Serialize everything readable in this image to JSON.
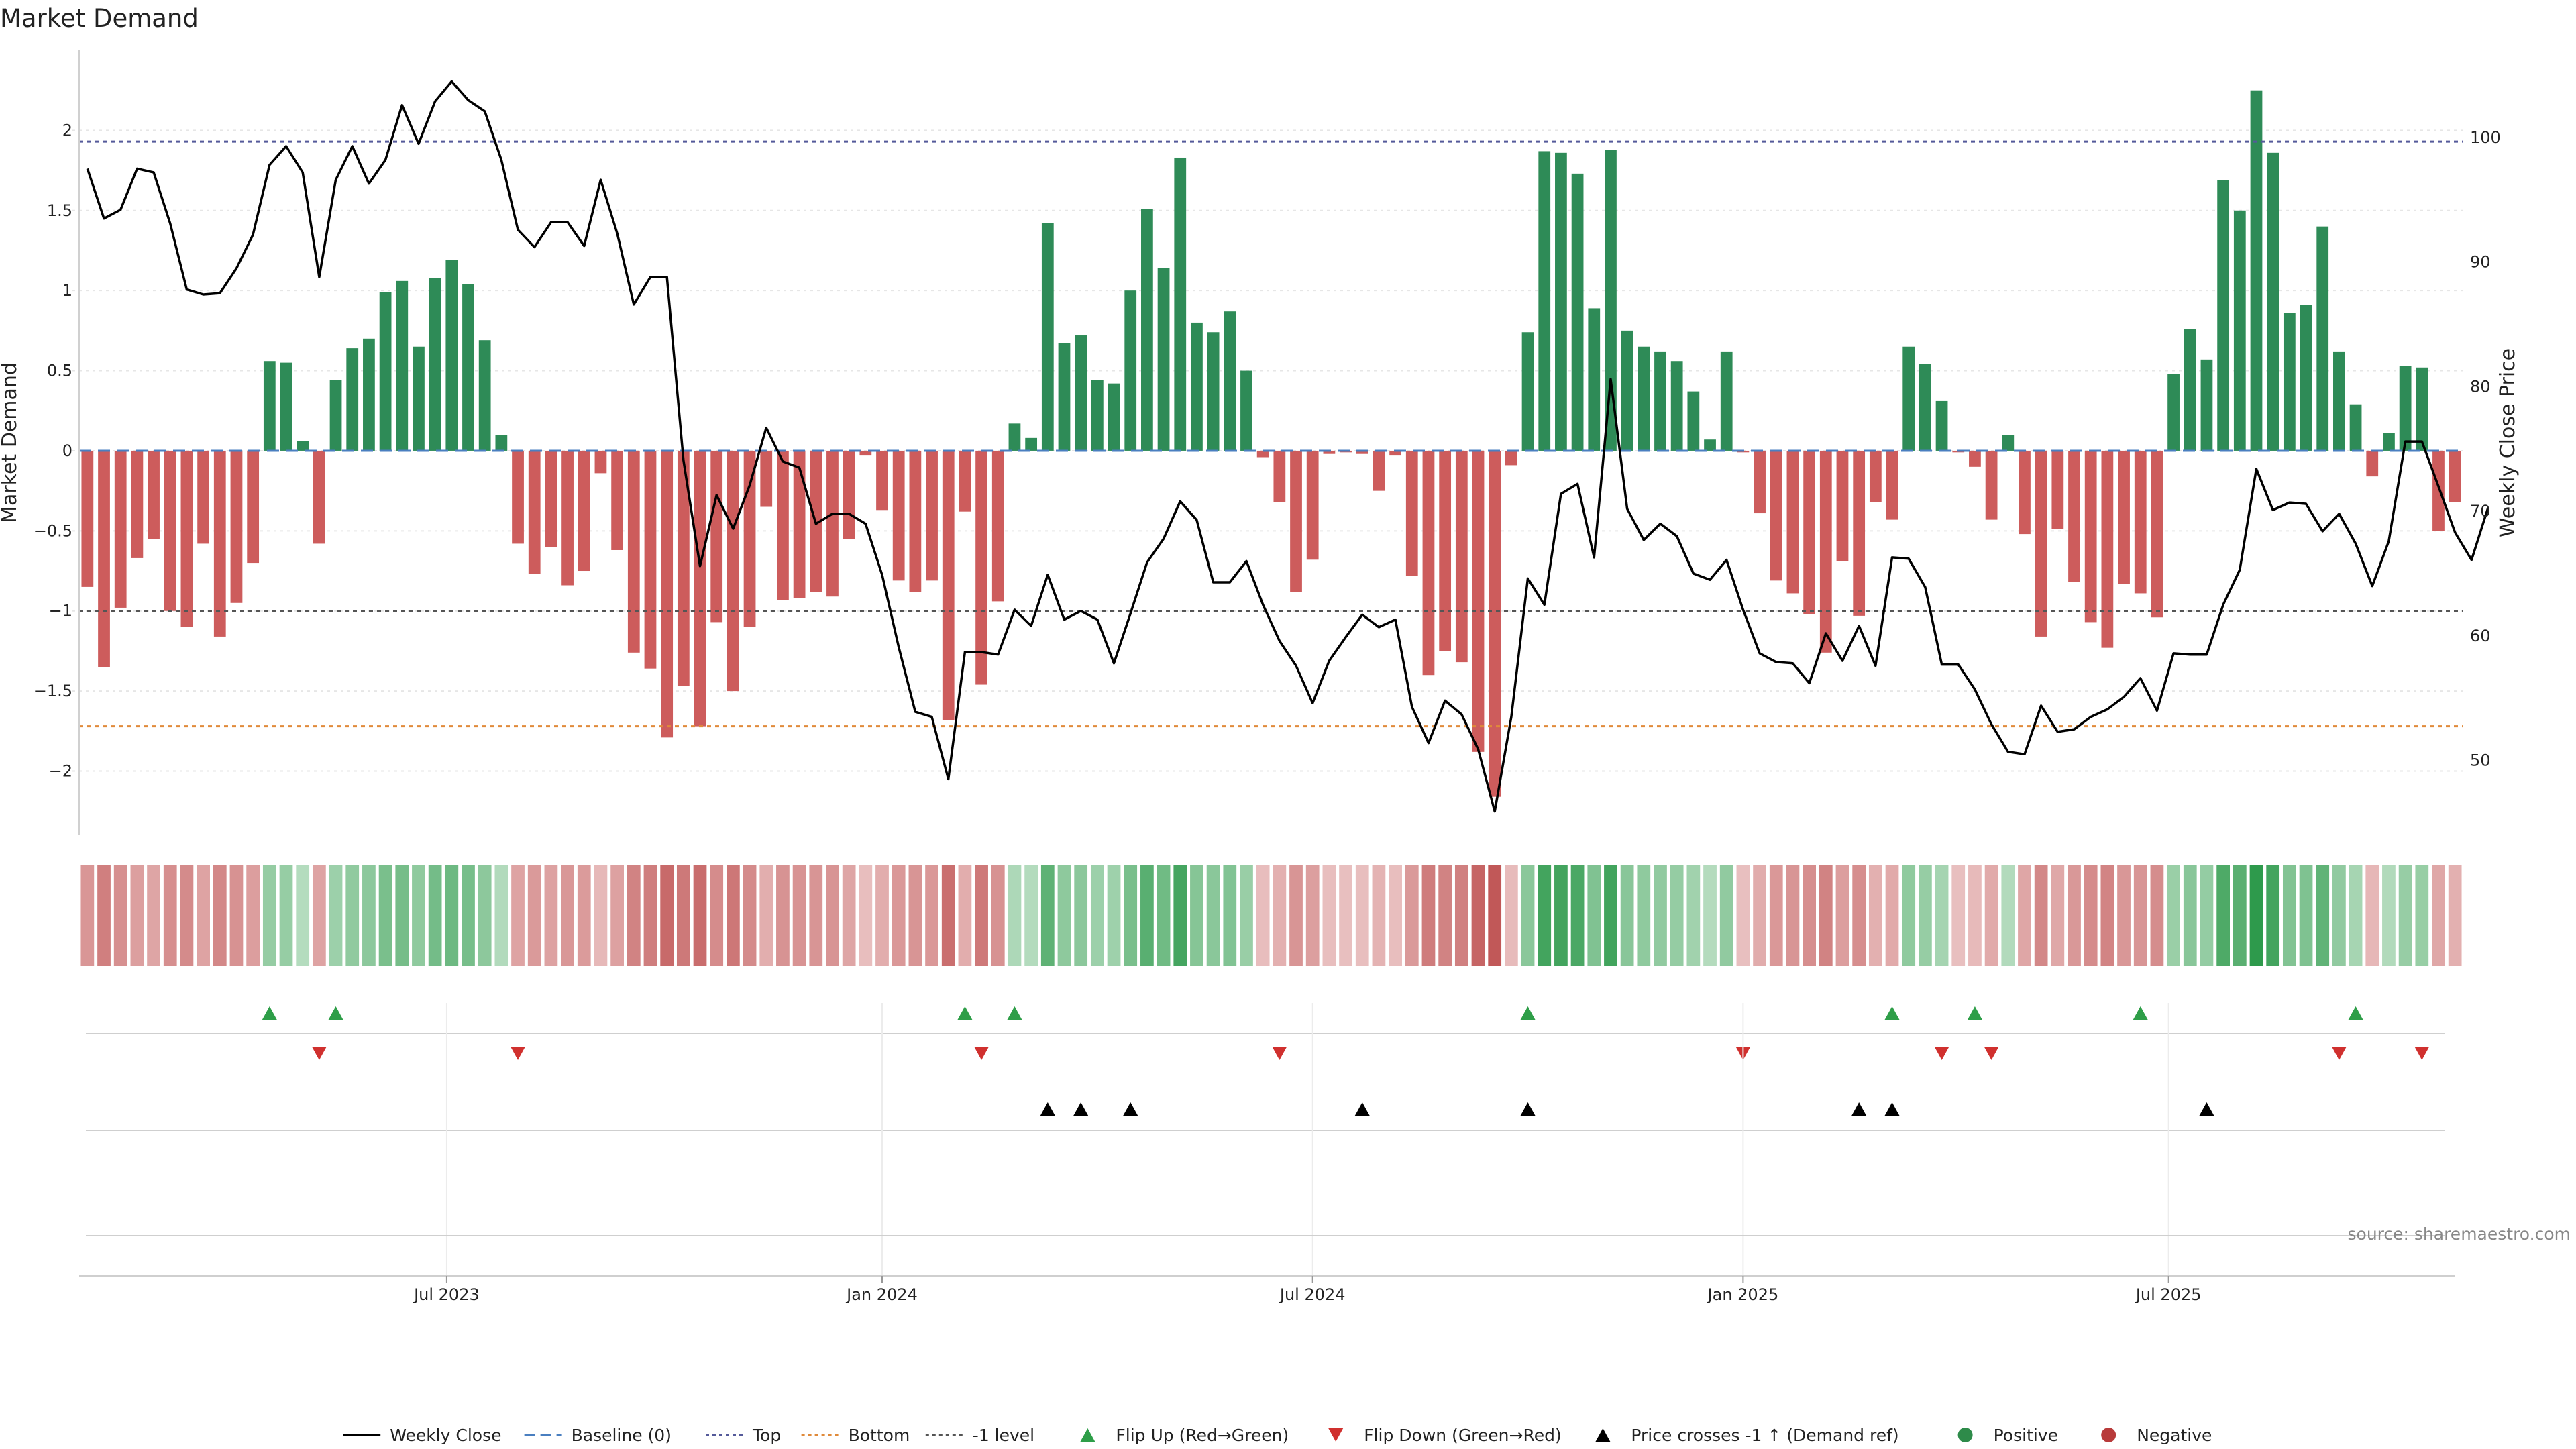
{
  "chart_data": {
    "type": "bar",
    "title": "Market Demand",
    "ylabel_left": "Market Demand",
    "ylabel_right": "Weekly Close Price",
    "ylim_left": [
      -2.4,
      2.5
    ],
    "ylim_right": [
      44,
      107
    ],
    "yticks_left": [
      -2,
      -1.5,
      -1,
      -0.5,
      0,
      0.5,
      1,
      1.5,
      2
    ],
    "yticks_right": [
      50,
      60,
      70,
      80,
      90,
      100
    ],
    "x_ticks": [
      {
        "week": 21.7,
        "label": "Jul 2023"
      },
      {
        "week": 48,
        "label": "Jan 2024"
      },
      {
        "week": 74,
        "label": "Jul 2024"
      },
      {
        "week": 100,
        "label": "Jan 2025"
      },
      {
        "week": 125.7,
        "label": "Jul 2025"
      }
    ],
    "reference_lines": {
      "baseline": 0,
      "top": 1.93,
      "bottom": -1.72,
      "minus_one": -1
    },
    "series": [
      {
        "name": "Market Demand",
        "values": [
          -0.85,
          -1.35,
          -0.98,
          -0.67,
          -0.55,
          -1.0,
          -1.1,
          -0.58,
          -1.16,
          -0.95,
          -0.7,
          0.56,
          0.55,
          0.06,
          -0.58,
          0.44,
          0.64,
          0.7,
          0.99,
          1.06,
          0.65,
          1.08,
          1.19,
          1.04,
          0.69,
          0.1,
          -0.58,
          -0.77,
          -0.6,
          -0.84,
          -0.75,
          -0.14,
          -0.62,
          -1.26,
          -1.36,
          -1.79,
          -1.47,
          -1.72,
          -1.07,
          -1.5,
          -1.1,
          -0.35,
          -0.93,
          -0.92,
          -0.88,
          -0.91,
          -0.55,
          -0.03,
          -0.37,
          -0.81,
          -0.88,
          -0.81,
          -1.68,
          -0.38,
          -1.46,
          -0.94,
          0.17,
          0.08,
          1.42,
          0.67,
          0.72,
          0.44,
          0.42,
          1.0,
          1.51,
          1.14,
          1.83,
          0.8,
          0.74,
          0.87,
          0.5,
          -0.04,
          -0.32,
          -0.88,
          -0.68,
          -0.02,
          -0.01,
          -0.02,
          -0.25,
          -0.03,
          -0.78,
          -1.4,
          -1.25,
          -1.32,
          -1.88,
          -2.16,
          -0.09,
          0.74,
          1.87,
          1.86,
          1.73,
          0.89,
          1.88,
          0.75,
          0.65,
          0.62,
          0.56,
          0.37,
          0.07,
          0.62,
          -0.01,
          -0.39,
          -0.81,
          -0.89,
          -1.02,
          -1.26,
          -0.69,
          -1.03,
          -0.32,
          -0.43,
          0.65,
          0.54,
          0.31,
          -0.01,
          -0.1,
          -0.43,
          0.1,
          -0.52,
          -1.16,
          -0.49,
          -0.82,
          -1.07,
          -1.23,
          -0.83,
          -0.89,
          -1.04,
          0.48,
          0.76,
          0.57,
          1.69,
          1.5,
          2.25,
          1.86,
          0.86,
          0.91,
          1.4,
          0.62,
          0.29,
          -0.16,
          0.11,
          0.53,
          0.52,
          -0.5,
          -0.32
        ]
      },
      {
        "name": "Weekly Close",
        "values": [
          97.5,
          93.5,
          94.2,
          97.5,
          97.2,
          93.1,
          87.8,
          87.4,
          87.5,
          89.5,
          92.2,
          97.8,
          99.3,
          97.2,
          88.8,
          96.6,
          99.3,
          96.3,
          98.2,
          102.6,
          99.5,
          102.9,
          104.5,
          103.0,
          102.1,
          98.2,
          92.6,
          91.2,
          93.2,
          93.2,
          91.3,
          96.6,
          92.3,
          86.6,
          88.8,
          88.8,
          74.1,
          65.6,
          71.3,
          68.6,
          72.1,
          76.7,
          74.0,
          73.5,
          69.0,
          69.8,
          69.8,
          69.0,
          64.9,
          59.1,
          53.9,
          53.5,
          48.5,
          58.7,
          58.7,
          58.5,
          62.1,
          60.8,
          64.9,
          61.3,
          62.0,
          61.3,
          57.8,
          61.8,
          65.9,
          67.8,
          70.8,
          69.3,
          64.3,
          64.3,
          66.0,
          62.5,
          59.6,
          57.6,
          54.6,
          58.0,
          59.9,
          61.7,
          60.7,
          61.3,
          54.3,
          51.4,
          54.8,
          53.7,
          50.9,
          45.9,
          53.5,
          64.6,
          62.5,
          71.4,
          72.2,
          66.3,
          80.6,
          70.2,
          67.7,
          69.0,
          68.0,
          65.0,
          64.5,
          66.1,
          62.1,
          58.6,
          57.9,
          57.8,
          56.2,
          60.2,
          58.0,
          60.8,
          57.6,
          66.3,
          66.2,
          63.9,
          57.7,
          57.7,
          55.7,
          52.9,
          50.7,
          50.5,
          54.4,
          52.3,
          52.5,
          53.5,
          54.1,
          55.1,
          56.6,
          54.0,
          58.6,
          58.5,
          58.5,
          62.5,
          65.3,
          73.4,
          70.1,
          70.7,
          70.6,
          68.4,
          69.8,
          67.4,
          64.0,
          67.6,
          75.6,
          75.6,
          72.0,
          68.3,
          66.1,
          70.3
        ]
      }
    ],
    "bands": {
      "flip_up_weeks": [
        11,
        15,
        53,
        56,
        87,
        109,
        114,
        124,
        137
      ],
      "flip_down_weeks": [
        14,
        26,
        54,
        72,
        100,
        112,
        115,
        136,
        141
      ],
      "price_cross_weeks": [
        58,
        60,
        63,
        77,
        87,
        107,
        109,
        128
      ]
    },
    "source_text": "source: sharemaestro.com",
    "legend": [
      {
        "label": "Weekly Close",
        "kind": "line-solid",
        "color": "#000000"
      },
      {
        "label": "Baseline (0)",
        "kind": "line-dash",
        "color": "#4a7fc0"
      },
      {
        "label": "Top",
        "kind": "line-dot",
        "color": "#555a9a"
      },
      {
        "label": "Bottom",
        "kind": "line-dot",
        "color": "#e08a3a"
      },
      {
        "label": "-1 level",
        "kind": "line-dot",
        "color": "#555555"
      },
      {
        "label": "Flip Up (Red→Green)",
        "kind": "tri-up",
        "color": "#2e9e48"
      },
      {
        "label": "Flip Down (Green→Red)",
        "kind": "tri-down",
        "color": "#d0302e"
      },
      {
        "label": "Price crosses -1 ↑ (Demand ref)",
        "kind": "tri-up",
        "color": "#000000"
      },
      {
        "label": "Positive",
        "kind": "dot",
        "color": "#2e8b4a"
      },
      {
        "label": "Negative",
        "kind": "dot",
        "color": "#b83a3a"
      }
    ],
    "colors": {
      "positive": "#2e8b57",
      "negative": "#cd5c5c",
      "grid": "#e6e6e6"
    }
  }
}
